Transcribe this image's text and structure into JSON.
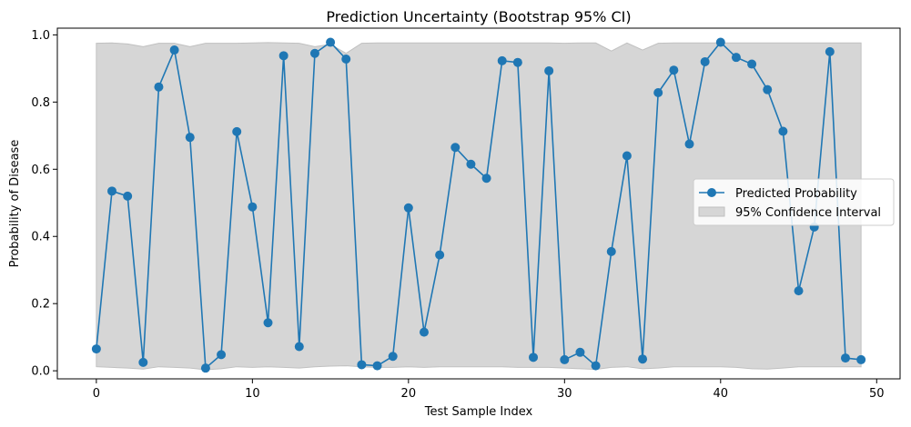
{
  "chart_data": {
    "type": "line",
    "title": "Prediction Uncertainty (Bootstrap 95% CI)",
    "xlabel": "Test Sample Index",
    "ylabel": "Probability of Disease",
    "xlim": [
      -2.5,
      51.5
    ],
    "ylim": [
      -0.024,
      1.02
    ],
    "xticks": [
      0,
      10,
      20,
      30,
      40,
      50
    ],
    "yticks": [
      0.0,
      0.2,
      0.4,
      0.6,
      0.8,
      1.0
    ],
    "xtick_labels": [
      "0",
      "10",
      "20",
      "30",
      "40",
      "50"
    ],
    "ytick_labels": [
      "0.0",
      "0.2",
      "0.4",
      "0.6",
      "0.8",
      "1.0"
    ],
    "grid": false,
    "legend_position": "center-right",
    "series": [
      {
        "name": "Predicted Probability",
        "kind": "line-marker",
        "color": "#1f77b4",
        "x": [
          0,
          1,
          2,
          3,
          4,
          5,
          6,
          7,
          8,
          9,
          10,
          11,
          12,
          13,
          14,
          15,
          16,
          17,
          18,
          19,
          20,
          21,
          22,
          23,
          24,
          25,
          26,
          27,
          28,
          29,
          30,
          31,
          32,
          33,
          34,
          35,
          36,
          37,
          38,
          39,
          40,
          41,
          42,
          43,
          44,
          45,
          46,
          47,
          48,
          49
        ],
        "values": [
          0.065,
          0.535,
          0.52,
          0.025,
          0.845,
          0.955,
          0.695,
          0.008,
          0.048,
          0.712,
          0.488,
          0.143,
          0.938,
          0.072,
          0.945,
          0.978,
          0.928,
          0.018,
          0.015,
          0.043,
          0.485,
          0.115,
          0.345,
          0.665,
          0.615,
          0.573,
          0.923,
          0.918,
          0.04,
          0.893,
          0.033,
          0.055,
          0.015,
          0.355,
          0.64,
          0.035,
          0.828,
          0.895,
          0.675,
          0.92,
          0.978,
          0.933,
          0.913,
          0.837,
          0.713,
          0.238,
          0.428,
          0.95,
          0.038,
          0.033
        ]
      },
      {
        "name": "95% Confidence Interval",
        "kind": "band",
        "color": "#d6d6d6",
        "edge_color": "#c0c0c0",
        "x": [
          0,
          1,
          2,
          3,
          4,
          5,
          6,
          7,
          8,
          9,
          10,
          11,
          12,
          13,
          14,
          15,
          16,
          17,
          18,
          19,
          20,
          21,
          22,
          23,
          24,
          25,
          26,
          27,
          28,
          29,
          30,
          31,
          32,
          33,
          34,
          35,
          36,
          37,
          38,
          39,
          40,
          41,
          42,
          43,
          44,
          45,
          46,
          47,
          48,
          49
        ],
        "lower": [
          0.012,
          0.01,
          0.008,
          0.005,
          0.012,
          0.01,
          0.008,
          0.003,
          0.006,
          0.012,
          0.01,
          0.012,
          0.01,
          0.008,
          0.012,
          0.014,
          0.015,
          0.012,
          0.01,
          0.01,
          0.012,
          0.01,
          0.012,
          0.012,
          0.012,
          0.012,
          0.012,
          0.01,
          0.01,
          0.01,
          0.008,
          0.006,
          0.004,
          0.01,
          0.012,
          0.006,
          0.008,
          0.012,
          0.012,
          0.012,
          0.012,
          0.01,
          0.006,
          0.005,
          0.008,
          0.012,
          0.012,
          0.012,
          0.012,
          0.012
        ],
        "upper": [
          0.975,
          0.976,
          0.973,
          0.965,
          0.975,
          0.975,
          0.965,
          0.975,
          0.975,
          0.975,
          0.976,
          0.977,
          0.976,
          0.975,
          0.965,
          0.972,
          0.945,
          0.975,
          0.976,
          0.976,
          0.976,
          0.976,
          0.976,
          0.976,
          0.976,
          0.976,
          0.976,
          0.976,
          0.976,
          0.976,
          0.975,
          0.976,
          0.976,
          0.952,
          0.976,
          0.955,
          0.975,
          0.976,
          0.976,
          0.976,
          0.976,
          0.976,
          0.976,
          0.976,
          0.976,
          0.976,
          0.976,
          0.976,
          0.976,
          0.976
        ]
      }
    ]
  }
}
